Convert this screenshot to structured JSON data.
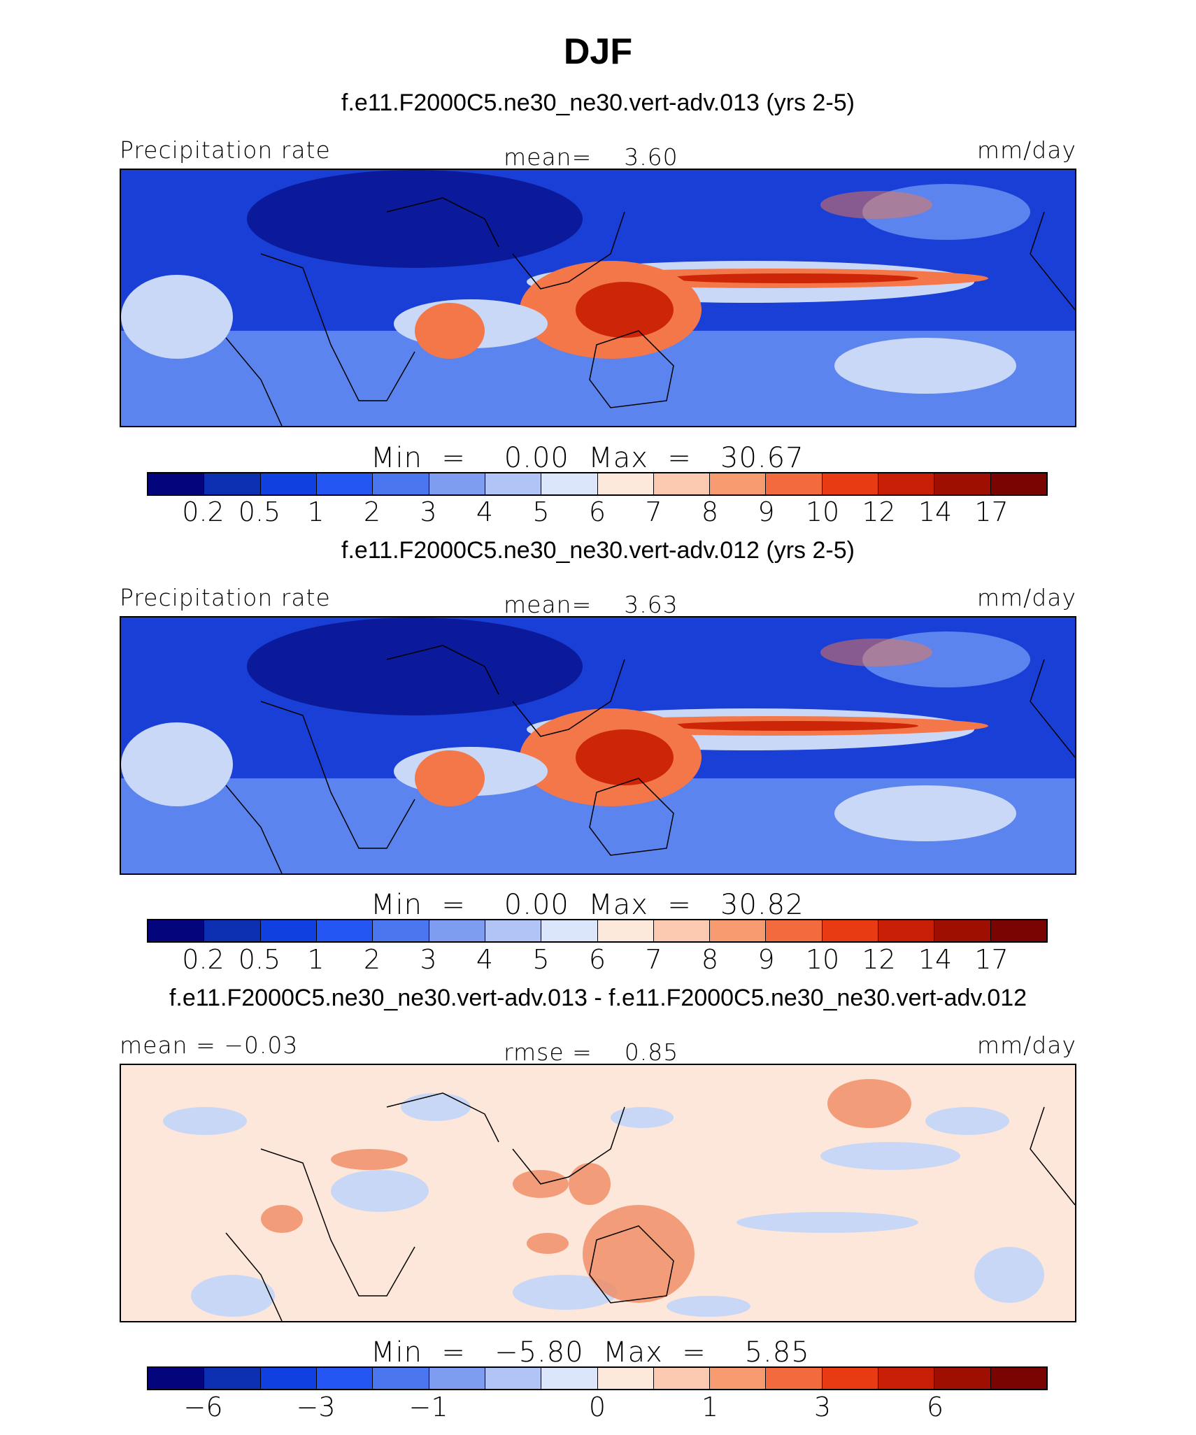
{
  "title": "DJF",
  "panels": [
    {
      "case": "f.e11.F2000C5.ne30_ne30.vert-adv.013 (yrs 2-5)",
      "left_label": "Precipitation rate",
      "center_label": "mean=    3.60",
      "right_label": "mm/day",
      "minmax": "Min  =    0.00  Max  =   30.67",
      "ticks": [
        "0.2",
        "0.5",
        "1",
        "2",
        "3",
        "4",
        "5",
        "6",
        "7",
        "8",
        "9",
        "10",
        "12",
        "14",
        "17"
      ]
    },
    {
      "case": "f.e11.F2000C5.ne30_ne30.vert-adv.012 (yrs 2-5)",
      "left_label": "Precipitation rate",
      "center_label": "mean=    3.63",
      "right_label": "mm/day",
      "minmax": "Min  =    0.00  Max  =   30.82",
      "ticks": [
        "0.2",
        "0.5",
        "1",
        "2",
        "3",
        "4",
        "5",
        "6",
        "7",
        "8",
        "9",
        "10",
        "12",
        "14",
        "17"
      ]
    },
    {
      "case": "f.e11.F2000C5.ne30_ne30.vert-adv.013 - f.e11.F2000C5.ne30_ne30.vert-adv.012",
      "left_label": "mean =   −0.03",
      "center_label": "rmse =    0.85",
      "right_label": "mm/day",
      "minmax": "Min  =   −5.80  Max  =    5.85",
      "ticks": [
        "−6",
        "−3",
        "−1",
        "0",
        "1",
        "3",
        "6"
      ]
    }
  ],
  "colorbar_colors": [
    "#04047c",
    "#0b2fb0",
    "#1040e0",
    "#2356f2",
    "#4a76f0",
    "#7f9df0",
    "#b0c4f5",
    "#dce6fa",
    "#fde9dc",
    "#fbc9b0",
    "#f69a70",
    "#f26a3d",
    "#e83b14",
    "#c81e05",
    "#9e0f02",
    "#7a0402"
  ],
  "map_colors": {
    "ocean_low": "#1a3fd6",
    "dry": "#0a1a9a",
    "mid": "#5b84ee",
    "light": "#c9d8f7",
    "wet": "#f4774a",
    "verywet": "#cc2508",
    "diff_bg": "#fde7da",
    "diff_blue": "#c8d7f6",
    "diff_red": "#f08a60"
  }
}
